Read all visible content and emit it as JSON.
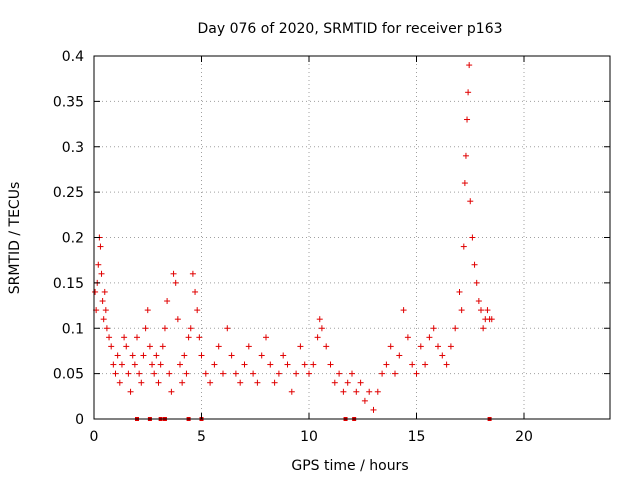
{
  "chart_data": {
    "type": "scatter",
    "title": "Day 076 of 2020, SRMTID for receiver p163",
    "xlabel": "GPS time / hours",
    "ylabel": "SRMTID / TECUs",
    "xlim": [
      0,
      24
    ],
    "ylim": [
      0,
      0.4
    ],
    "x_ticks": [
      0,
      5,
      10,
      15,
      20
    ],
    "y_ticks": [
      0,
      0.05,
      0.1,
      0.15,
      0.2,
      0.25,
      0.3,
      0.35,
      0.4
    ],
    "x_tick_labels": [
      "0",
      "5",
      "10",
      "15",
      "20"
    ],
    "y_tick_labels": [
      "0",
      "0.05",
      "0.1",
      "0.15",
      "0.2",
      "0.25",
      "0.3",
      "0.35",
      "0.4"
    ],
    "grid": true,
    "marker": "+",
    "marker_color": "#e00000",
    "series": [
      {
        "name": "SRMTID",
        "points": [
          [
            0.05,
            0.14
          ],
          [
            0.1,
            0.12
          ],
          [
            0.15,
            0.15
          ],
          [
            0.2,
            0.17
          ],
          [
            0.25,
            0.2
          ],
          [
            0.3,
            0.19
          ],
          [
            0.35,
            0.16
          ],
          [
            0.4,
            0.13
          ],
          [
            0.45,
            0.11
          ],
          [
            0.5,
            0.14
          ],
          [
            0.55,
            0.12
          ],
          [
            0.6,
            0.1
          ],
          [
            0.7,
            0.09
          ],
          [
            0.8,
            0.08
          ],
          [
            0.9,
            0.06
          ],
          [
            1.0,
            0.05
          ],
          [
            1.1,
            0.07
          ],
          [
            1.2,
            0.04
          ],
          [
            1.3,
            0.06
          ],
          [
            1.4,
            0.09
          ],
          [
            1.5,
            0.08
          ],
          [
            1.6,
            0.05
          ],
          [
            1.7,
            0.03
          ],
          [
            1.8,
            0.07
          ],
          [
            1.9,
            0.06
          ],
          [
            2.0,
            0.09
          ],
          [
            2.1,
            0.05
          ],
          [
            2.2,
            0.04
          ],
          [
            2.3,
            0.07
          ],
          [
            2.4,
            0.1
          ],
          [
            2.5,
            0.12
          ],
          [
            2.6,
            0.08
          ],
          [
            2.7,
            0.06
          ],
          [
            2.8,
            0.05
          ],
          [
            2.9,
            0.07
          ],
          [
            3.0,
            0.04
          ],
          [
            3.1,
            0.06
          ],
          [
            3.2,
            0.08
          ],
          [
            3.3,
            0.1
          ],
          [
            3.4,
            0.13
          ],
          [
            3.5,
            0.05
          ],
          [
            3.6,
            0.03
          ],
          [
            3.7,
            0.16
          ],
          [
            3.8,
            0.15
          ],
          [
            3.9,
            0.11
          ],
          [
            4.0,
            0.06
          ],
          [
            4.1,
            0.04
          ],
          [
            4.2,
            0.07
          ],
          [
            4.3,
            0.05
          ],
          [
            4.4,
            0.09
          ],
          [
            4.5,
            0.1
          ],
          [
            4.6,
            0.16
          ],
          [
            4.7,
            0.14
          ],
          [
            4.8,
            0.12
          ],
          [
            4.9,
            0.09
          ],
          [
            5.0,
            0.07
          ],
          [
            5.2,
            0.05
          ],
          [
            5.4,
            0.04
          ],
          [
            5.6,
            0.06
          ],
          [
            5.8,
            0.08
          ],
          [
            6.0,
            0.05
          ],
          [
            6.2,
            0.1
          ],
          [
            6.4,
            0.07
          ],
          [
            6.6,
            0.05
          ],
          [
            6.8,
            0.04
          ],
          [
            7.0,
            0.06
          ],
          [
            7.2,
            0.08
          ],
          [
            7.4,
            0.05
          ],
          [
            7.6,
            0.04
          ],
          [
            7.8,
            0.07
          ],
          [
            8.0,
            0.09
          ],
          [
            8.2,
            0.06
          ],
          [
            8.4,
            0.04
          ],
          [
            8.6,
            0.05
          ],
          [
            8.8,
            0.07
          ],
          [
            9.0,
            0.06
          ],
          [
            9.2,
            0.03
          ],
          [
            9.4,
            0.05
          ],
          [
            9.6,
            0.08
          ],
          [
            9.8,
            0.06
          ],
          [
            10.0,
            0.05
          ],
          [
            10.2,
            0.06
          ],
          [
            10.4,
            0.09
          ],
          [
            10.5,
            0.11
          ],
          [
            10.6,
            0.1
          ],
          [
            10.8,
            0.08
          ],
          [
            11.0,
            0.06
          ],
          [
            11.2,
            0.04
          ],
          [
            11.4,
            0.05
          ],
          [
            11.6,
            0.03
          ],
          [
            11.8,
            0.04
          ],
          [
            12.0,
            0.05
          ],
          [
            12.2,
            0.03
          ],
          [
            12.4,
            0.04
          ],
          [
            12.6,
            0.02
          ],
          [
            12.8,
            0.03
          ],
          [
            13.0,
            0.01
          ],
          [
            13.2,
            0.03
          ],
          [
            13.4,
            0.05
          ],
          [
            13.6,
            0.06
          ],
          [
            13.8,
            0.08
          ],
          [
            14.0,
            0.05
          ],
          [
            14.2,
            0.07
          ],
          [
            14.4,
            0.12
          ],
          [
            14.6,
            0.09
          ],
          [
            14.8,
            0.06
          ],
          [
            15.0,
            0.05
          ],
          [
            15.2,
            0.08
          ],
          [
            15.4,
            0.06
          ],
          [
            15.6,
            0.09
          ],
          [
            15.8,
            0.1
          ],
          [
            16.0,
            0.08
          ],
          [
            16.2,
            0.07
          ],
          [
            16.4,
            0.06
          ],
          [
            16.6,
            0.08
          ],
          [
            16.8,
            0.1
          ],
          [
            17.0,
            0.14
          ],
          [
            17.1,
            0.12
          ],
          [
            17.2,
            0.19
          ],
          [
            17.25,
            0.26
          ],
          [
            17.3,
            0.29
          ],
          [
            17.35,
            0.33
          ],
          [
            17.4,
            0.36
          ],
          [
            17.45,
            0.39
          ],
          [
            17.5,
            0.24
          ],
          [
            17.6,
            0.2
          ],
          [
            17.7,
            0.17
          ],
          [
            17.8,
            0.15
          ],
          [
            17.9,
            0.13
          ],
          [
            18.0,
            0.12
          ],
          [
            18.1,
            0.1
          ],
          [
            18.2,
            0.11
          ],
          [
            18.3,
            0.12
          ],
          [
            18.4,
            0.11
          ],
          [
            18.5,
            0.11
          ]
        ],
        "zero_markers": [
          2.0,
          2.6,
          3.1,
          3.3,
          4.4,
          5.0,
          11.7,
          12.1,
          18.4
        ]
      }
    ]
  }
}
